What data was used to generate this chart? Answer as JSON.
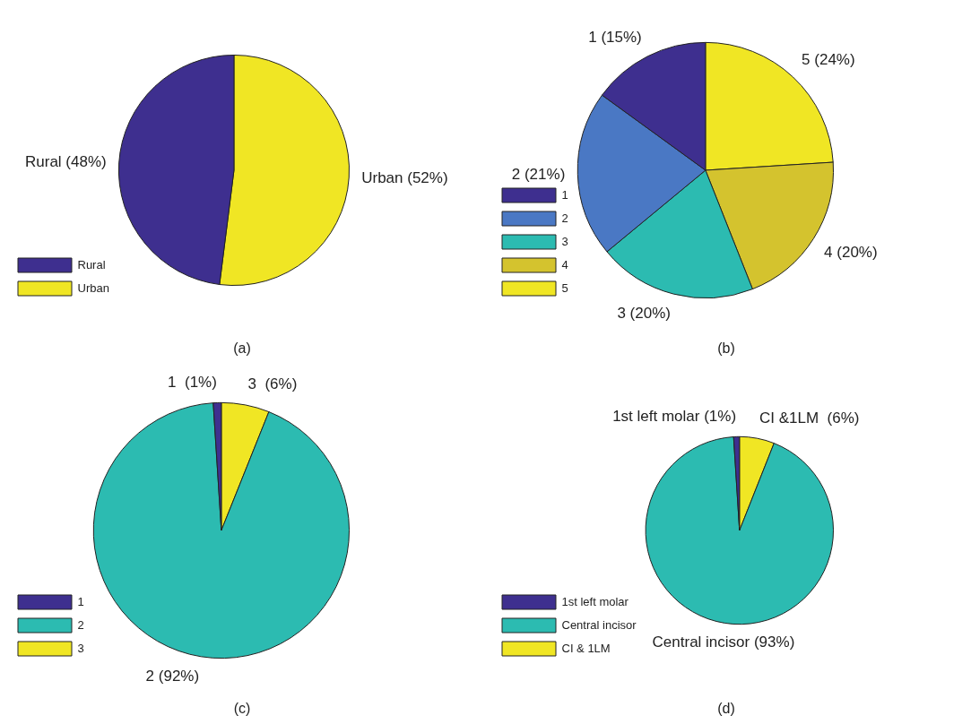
{
  "chart_data": [
    {
      "type": "pie",
      "categories": [
        "Rural",
        "Urban"
      ],
      "values": [
        48,
        52
      ],
      "colors": [
        "#3e2f8f",
        "#f0e624"
      ],
      "value_labels": [
        "Rural (48%)",
        "Urban (52%)"
      ],
      "legend": "bottom left",
      "annotations": [
        "(a)"
      ]
    },
    {
      "type": "pie",
      "categories": [
        "1",
        "2",
        "3",
        "4",
        "5"
      ],
      "values": [
        15,
        21,
        20,
        20,
        24
      ],
      "colors": [
        "#3e2f8f",
        "#4a78c4",
        "#2cbbb1",
        "#d4c32e",
        "#f0e624"
      ],
      "value_labels": [
        "1 (15%)",
        "2 (21%)",
        "3 (20%)",
        "4 (20%)",
        "5 (24%)"
      ],
      "legend": "bottom left",
      "annotations": [
        "(b)"
      ]
    },
    {
      "type": "pie",
      "categories": [
        "1",
        "2",
        "3"
      ],
      "values": [
        1,
        92,
        6
      ],
      "colors": [
        "#3e2f8f",
        "#2cbbb1",
        "#f0e624"
      ],
      "value_labels": [
        "1  (1%)",
        "2 (92%)",
        "3  (6%)"
      ],
      "legend": "bottom left",
      "annotations": [
        "(c)"
      ]
    },
    {
      "type": "pie",
      "categories": [
        "1st left molar",
        "Central incisor",
        "CI & 1LM"
      ],
      "values": [
        1,
        93,
        6
      ],
      "colors": [
        "#3e2f8f",
        "#2cbbb1",
        "#f0e624"
      ],
      "value_labels": [
        "1st left molar (1%)",
        "Central incisor (93%)",
        "CI &1LM  (6%)"
      ],
      "legend": "bottom left",
      "annotations": [
        "(d)"
      ]
    }
  ]
}
